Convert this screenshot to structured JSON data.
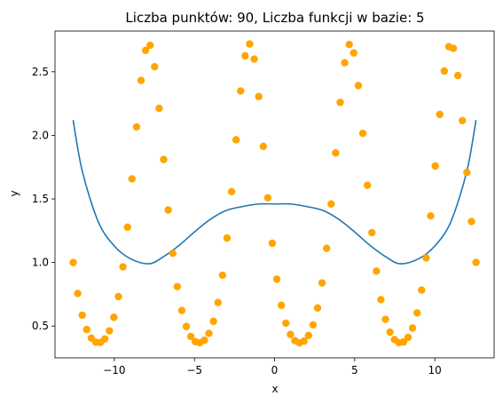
{
  "chart_data": {
    "type": "scatter",
    "title": "Liczba punktów: 90, Liczba funkcji w bazie: 5",
    "xlabel": "x",
    "ylabel": "y",
    "xlim": [
      -13.7,
      13.7
    ],
    "ylim": [
      0.25,
      2.82
    ],
    "xticks": [
      -10,
      -5,
      0,
      5,
      10
    ],
    "yticks": [
      0.5,
      1.0,
      1.5,
      2.0,
      2.5
    ],
    "xtick_labels": [
      "−10",
      "−5",
      "0",
      "5",
      "10"
    ],
    "ytick_labels": [
      "0.5",
      "1.0",
      "1.5",
      "2.0",
      "2.5"
    ],
    "grid": false,
    "legend": "none",
    "series": [
      {
        "kind": "points",
        "color": "#ffa500",
        "function": "exp(-sin(x))",
        "x_range": [
          -12.566,
          12.566
        ],
        "n_points": 90
      },
      {
        "kind": "line",
        "color": "#1f77b4",
        "curve_points": [
          [
            -12.57,
            2.12
          ],
          [
            -12.0,
            1.72
          ],
          [
            -11.0,
            1.32
          ],
          [
            -10.0,
            1.13
          ],
          [
            -9.0,
            1.03
          ],
          [
            -7.85,
            0.99
          ],
          [
            -7.0,
            1.04
          ],
          [
            -6.0,
            1.13
          ],
          [
            -5.0,
            1.24
          ],
          [
            -4.0,
            1.34
          ],
          [
            -3.0,
            1.41
          ],
          [
            -2.0,
            1.44
          ],
          [
            -1.0,
            1.46
          ],
          [
            0.0,
            1.46
          ],
          [
            1.0,
            1.46
          ],
          [
            2.0,
            1.44
          ],
          [
            3.0,
            1.41
          ],
          [
            4.0,
            1.34
          ],
          [
            5.0,
            1.24
          ],
          [
            6.0,
            1.13
          ],
          [
            7.0,
            1.04
          ],
          [
            7.85,
            0.99
          ],
          [
            9.0,
            1.03
          ],
          [
            10.0,
            1.13
          ],
          [
            11.0,
            1.32
          ],
          [
            12.0,
            1.72
          ],
          [
            12.57,
            2.12
          ]
        ]
      }
    ]
  }
}
